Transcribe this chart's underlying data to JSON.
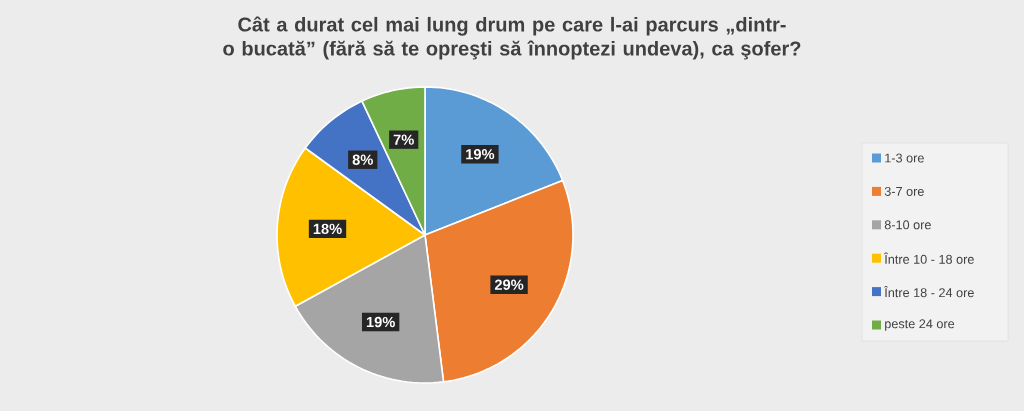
{
  "chart_data": {
    "type": "pie",
    "title": "Cât a durat cel mai lung drum pe care l-ai parcurs „dintr-o bucată” (fără să te opreşti să înnoptezi undeva), ca şofer?",
    "categories": [
      "1-3 ore",
      "3-7 ore",
      "8-10 ore",
      "Între 10 - 18 ore",
      "Între 18 - 24 ore",
      "peste 24 ore"
    ],
    "values": [
      19,
      29,
      19,
      18,
      8,
      7
    ],
    "colors": [
      "#5b9bd5",
      "#ed7d31",
      "#a5a5a5",
      "#ffc000",
      "#4472c4",
      "#70ad47"
    ],
    "value_labels": [
      "19%",
      "29%",
      "19%",
      "18%",
      "8%",
      "7%"
    ],
    "legend": "right"
  }
}
